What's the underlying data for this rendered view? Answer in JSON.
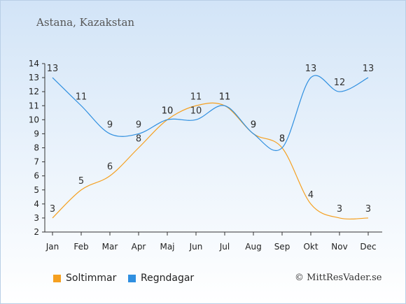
{
  "location": "Astana, Kazakstan",
  "copyright": "© MittResVader.se",
  "chart_data": {
    "type": "line",
    "categories": [
      "Jan",
      "Feb",
      "Mar",
      "Apr",
      "Maj",
      "Jun",
      "Jul",
      "Aug",
      "Sep",
      "Okt",
      "Nov",
      "Dec"
    ],
    "ylim": [
      2,
      14
    ],
    "yticks": [
      "2",
      "3",
      "4",
      "5",
      "6",
      "7",
      "8",
      "9",
      "10",
      "11",
      "12",
      "13",
      "14"
    ],
    "grid": false,
    "legend": "bottom-left",
    "series": [
      {
        "name": "Soltimmar",
        "color": "#f5a020",
        "values": [
          3,
          5,
          6,
          8,
          10,
          11,
          11,
          9,
          8,
          4,
          3,
          3
        ],
        "labels": [
          "3",
          "5",
          "6",
          "8",
          "10",
          "11",
          "11",
          "9",
          "8",
          "4",
          "3",
          "3"
        ]
      },
      {
        "name": "Regndagar",
        "color": "#2f8fe0",
        "values": [
          13,
          11,
          9,
          9,
          10,
          10,
          11,
          9,
          8,
          13,
          12,
          13
        ],
        "labels": [
          "13",
          "11",
          "9",
          "9",
          "10",
          "10",
          "11",
          "9",
          "8",
          "13",
          "12",
          "13"
        ]
      }
    ]
  }
}
